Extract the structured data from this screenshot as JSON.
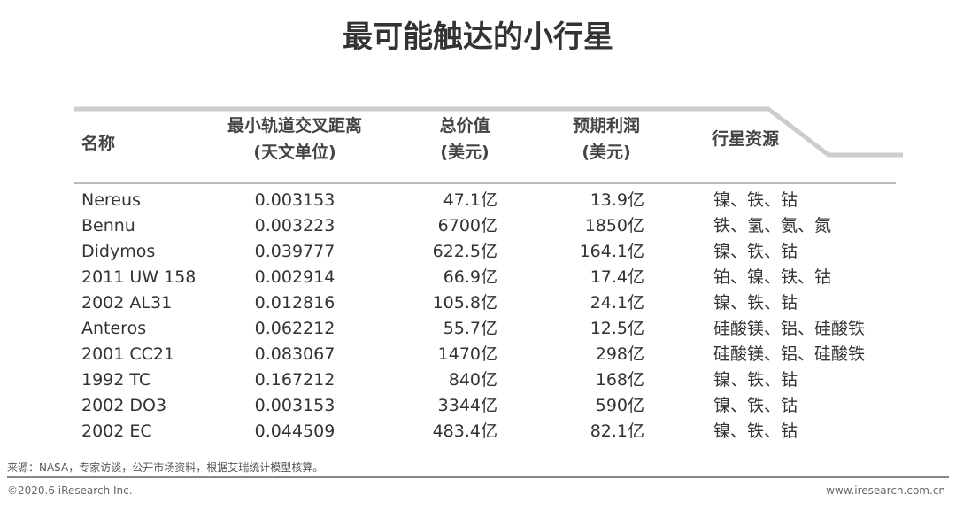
{
  "title": "最可能触达的小行星",
  "headers": {
    "name": "名称",
    "distance": [
      "最小轨道交叉距离",
      "(天文单位)"
    ],
    "value": [
      "总价值",
      "(美元)"
    ],
    "profit": [
      "预期利润",
      "(美元)"
    ],
    "resources": "行星资源"
  },
  "rows": [
    {
      "name": "Nereus",
      "distance": "0.003153",
      "value": "47.1亿",
      "profit": "13.9亿",
      "resources": "镍、铁、钴"
    },
    {
      "name": "Bennu",
      "distance": "0.003223",
      "value": "6700亿",
      "profit": "1850亿",
      "resources": "铁、氢、氨、氮"
    },
    {
      "name": "Didymos",
      "distance": "0.039777",
      "value": "622.5亿",
      "profit": "164.1亿",
      "resources": "镍、铁、钴"
    },
    {
      "name": "2011 UW 158",
      "distance": "0.002914",
      "value": "66.9亿",
      "profit": "17.4亿",
      "resources": "铂、镍、铁、钴"
    },
    {
      "name": "2002 AL31",
      "distance": "0.012816",
      "value": "105.8亿",
      "profit": "24.1亿",
      "resources": "镍、铁、钴"
    },
    {
      "name": "Anteros",
      "distance": "0.062212",
      "value": "55.7亿",
      "profit": "12.5亿",
      "resources": "硅酸镁、铝、硅酸铁"
    },
    {
      "name": "2001 CC21",
      "distance": "0.083067",
      "value": "1470亿",
      "profit": "298亿",
      "resources": "硅酸镁、铝、硅酸铁"
    },
    {
      "name": "1992 TC",
      "distance": "0.167212",
      "value": "840亿",
      "profit": "168亿",
      "resources": "镍、铁、钴"
    },
    {
      "name": "2002 DO3",
      "distance": "0.003153",
      "value": "3344亿",
      "profit": "590亿",
      "resources": "镍、铁、钴"
    },
    {
      "name": "2002 EC",
      "distance": "0.044509",
      "value": "483.4亿",
      "profit": "82.1亿",
      "resources": "镍、铁、钴"
    }
  ],
  "footer": {
    "source": "来源：NASA，专家访谈，公开市场资料，根据艾瑞统计模型核算。",
    "copyright": "©2020.6 iResearch Inc.",
    "url": "www.iresearch.com.cn"
  }
}
